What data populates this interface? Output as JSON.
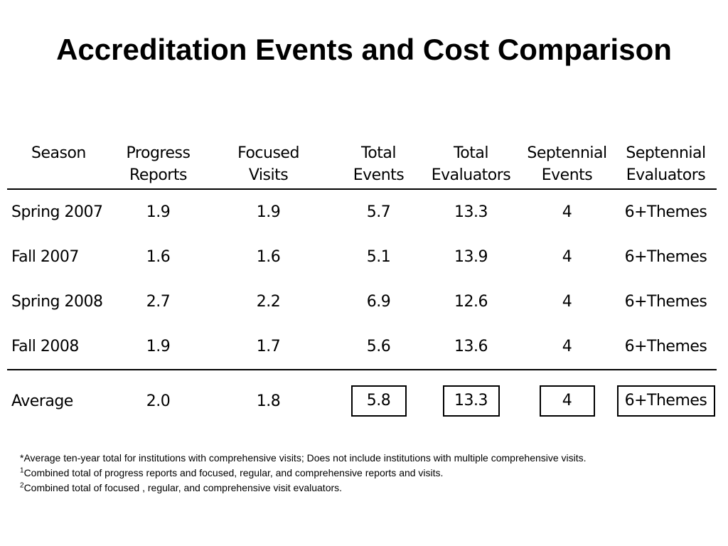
{
  "title": "Accreditation Events and Cost Comparison",
  "table": {
    "headers": [
      [
        "Season",
        ""
      ],
      [
        "Progress",
        "Reports"
      ],
      [
        "Focused",
        "Visits"
      ],
      [
        "Total",
        "Events"
      ],
      [
        "Total",
        "Evaluators"
      ],
      [
        "Septennial",
        "Events"
      ],
      [
        "Septennial",
        "Evaluators"
      ]
    ],
    "rows": [
      [
        "Spring 2007",
        "1.9",
        "1.9",
        "5.7",
        "13.3",
        "4",
        "6+Themes"
      ],
      [
        "Fall 2007",
        "1.6",
        "1.6",
        "5.1",
        "13.9",
        "4",
        "6+Themes"
      ],
      [
        "Spring 2008",
        "2.7",
        "2.2",
        "6.9",
        "12.6",
        "4",
        "6+Themes"
      ],
      [
        "Fall 2008",
        "1.9",
        "1.7",
        "5.6",
        "13.6",
        "4",
        "6+Themes"
      ]
    ],
    "average": [
      "Average",
      "2.0",
      "1.8",
      "5.8",
      "13.3",
      "4",
      "6+Themes"
    ]
  },
  "footnotes": {
    "star": "*Average ten-year total for institutions with comprehensive visits; Does not include institutions with multiple comprehensive visits.",
    "one_mark": "1",
    "one": "Combined total of progress reports and focused, regular, and comprehensive reports and visits.",
    "two_mark": "2",
    "two": "Combined total of focused , regular, and comprehensive visit evaluators."
  }
}
